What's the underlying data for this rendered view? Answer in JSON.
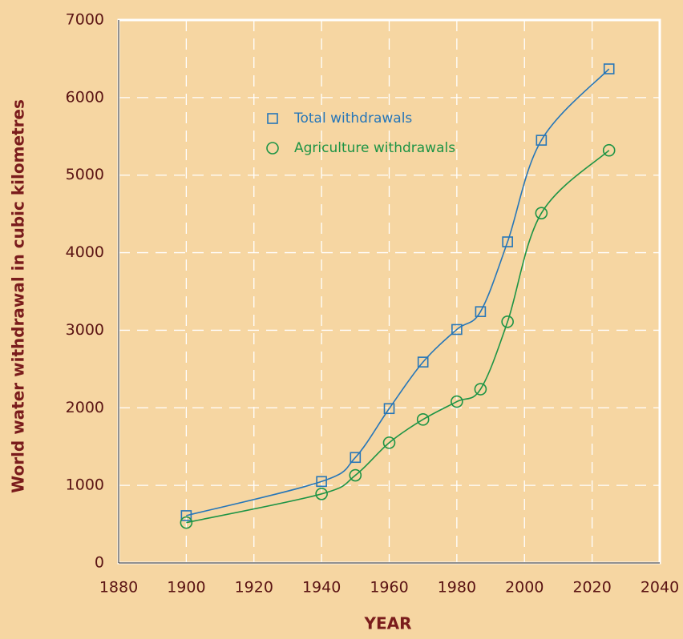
{
  "chart_data": {
    "type": "line",
    "x_label": "YEAR",
    "y_label": "World water withdrawal in cubic kilometres",
    "x": [
      1900,
      1940,
      1950,
      1960,
      1970,
      1980,
      1987,
      1995,
      2005,
      2025
    ],
    "series": [
      {
        "name": "Total withdrawals",
        "color": "#2676b8",
        "marker": "square",
        "values": [
          610,
          1050,
          1360,
          1990,
          2590,
          3010,
          3240,
          4140,
          5450,
          6370
        ]
      },
      {
        "name": "Agriculture withdrawals",
        "color": "#1d9445",
        "marker": "circle",
        "values": [
          520,
          890,
          1130,
          1550,
          1850,
          2080,
          2240,
          3110,
          4510,
          5320
        ]
      }
    ],
    "xlim": [
      1880,
      2040
    ],
    "xticks": [
      1880,
      1900,
      1920,
      1940,
      1960,
      1980,
      2000,
      2020,
      2040
    ],
    "ylim": [
      0,
      7000
    ],
    "yticks": [
      0,
      1000,
      2000,
      3000,
      4000,
      5000,
      6000,
      7000
    ],
    "grid": true,
    "smooth": true,
    "legend": "upper left"
  }
}
